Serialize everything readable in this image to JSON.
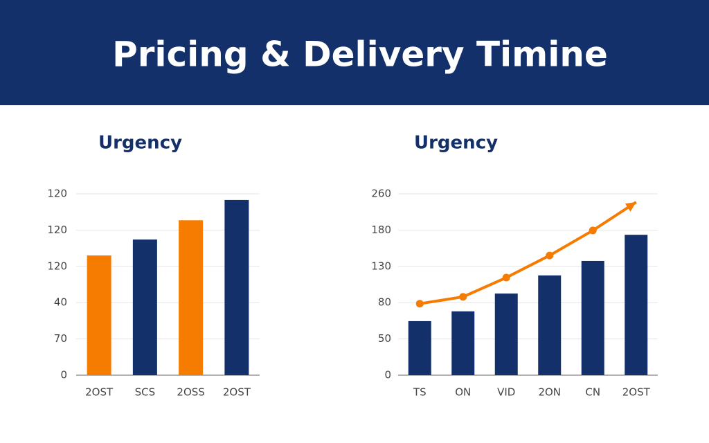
{
  "header": {
    "title": "Pricing & Delivery Timine"
  },
  "chart_data": [
    {
      "type": "bar",
      "title": "Urgency",
      "categories": [
        "2OST",
        "SCS",
        "2OSS",
        "2OST"
      ],
      "values": [
        3.3,
        3.74,
        4.27,
        4.83
      ],
      "colors": [
        "#f57c00",
        "#14306b",
        "#f57c00",
        "#14306b"
      ],
      "ylim": [
        0,
        5
      ],
      "yticks": [
        {
          "value": 0,
          "label": "0"
        },
        {
          "value": 1,
          "label": "70"
        },
        {
          "value": 2,
          "label": "40"
        },
        {
          "value": 3,
          "label": "120"
        },
        {
          "value": 4,
          "label": "120"
        },
        {
          "value": 5,
          "label": "120"
        }
      ],
      "grid": true
    },
    {
      "type": "combo",
      "title": "Urgency",
      "categories": [
        "TS",
        "ON",
        "VID",
        "2ON",
        "CN",
        "2OST"
      ],
      "series": [
        {
          "type": "bar",
          "color": "#14306b",
          "values": [
            1.49,
            1.76,
            2.25,
            2.75,
            3.15,
            3.87
          ]
        },
        {
          "type": "line",
          "color": "#f57c00",
          "values": [
            1.97,
            2.16,
            2.69,
            3.3,
            3.99,
            4.77
          ]
        }
      ],
      "ylim": [
        0,
        5
      ],
      "yticks": [
        {
          "value": 0,
          "label": "0"
        },
        {
          "value": 1,
          "label": "50"
        },
        {
          "value": 2,
          "label": "80"
        },
        {
          "value": 3,
          "label": "130"
        },
        {
          "value": 4,
          "label": "180"
        },
        {
          "value": 5,
          "label": "260"
        }
      ],
      "grid": true
    }
  ]
}
